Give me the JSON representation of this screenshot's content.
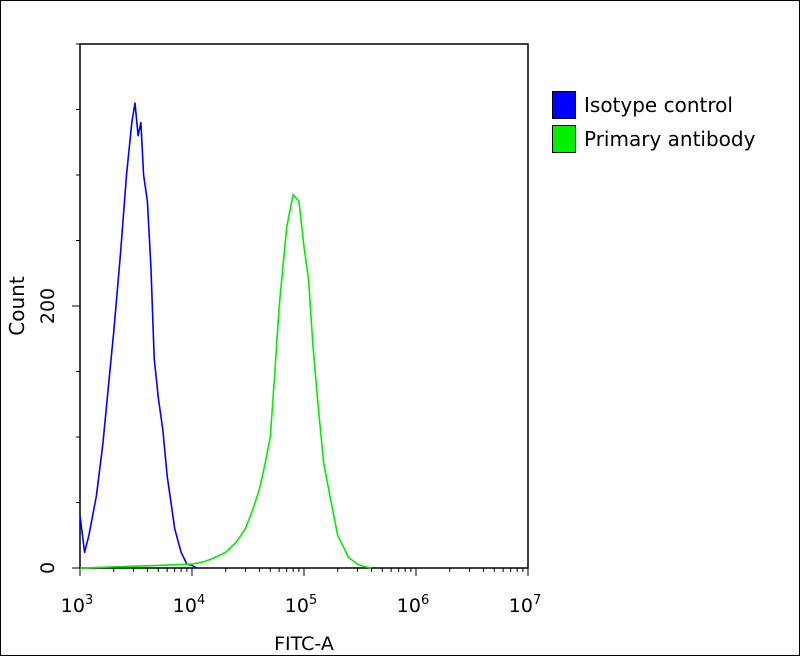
{
  "chart_data": {
    "type": "area",
    "xlabel": "FITC-A",
    "ylabel": "Count",
    "xscale": "log",
    "xlim": [
      1000,
      10000000
    ],
    "ylim": [
      0,
      400
    ],
    "x_ticks": [
      {
        "value": 1000,
        "base": "10",
        "exp": "3"
      },
      {
        "value": 10000,
        "base": "10",
        "exp": "4"
      },
      {
        "value": 100000,
        "base": "10",
        "exp": "5"
      },
      {
        "value": 1000000,
        "base": "10",
        "exp": "6"
      },
      {
        "value": 10000000,
        "base": "10",
        "exp": "7"
      }
    ],
    "y_ticks": [
      {
        "value": 0,
        "label": "0"
      },
      {
        "value": 200,
        "label": "200"
      }
    ],
    "legend_position": "right",
    "series": [
      {
        "name": "Isotype control",
        "color": "#0000ff",
        "x": [
          1000,
          1100,
          1200,
          1400,
          1600,
          1800,
          2000,
          2300,
          2600,
          2900,
          3100,
          3300,
          3500,
          3700,
          4000,
          4300,
          4600,
          5000,
          5500,
          6000,
          6500,
          7000,
          8000,
          9000,
          10000,
          11000
        ],
        "y": [
          40,
          12,
          25,
          55,
          95,
          140,
          180,
          240,
          300,
          340,
          355,
          330,
          340,
          300,
          280,
          230,
          160,
          130,
          105,
          70,
          50,
          30,
          12,
          3,
          2,
          0
        ]
      },
      {
        "name": "Primary antibody",
        "color": "#00ee00",
        "x": [
          1000,
          5000,
          10000,
          13000,
          16000,
          20000,
          25000,
          30000,
          35000,
          40000,
          45000,
          50000,
          55000,
          60000,
          70000,
          80000,
          90000,
          100000,
          110000,
          120000,
          135000,
          150000,
          175000,
          200000,
          250000,
          300000,
          350000,
          400000
        ],
        "y": [
          0,
          2,
          3,
          5,
          8,
          12,
          20,
          30,
          45,
          60,
          80,
          100,
          150,
          200,
          260,
          285,
          280,
          245,
          220,
          170,
          120,
          80,
          50,
          25,
          8,
          3,
          1,
          0
        ]
      }
    ]
  }
}
